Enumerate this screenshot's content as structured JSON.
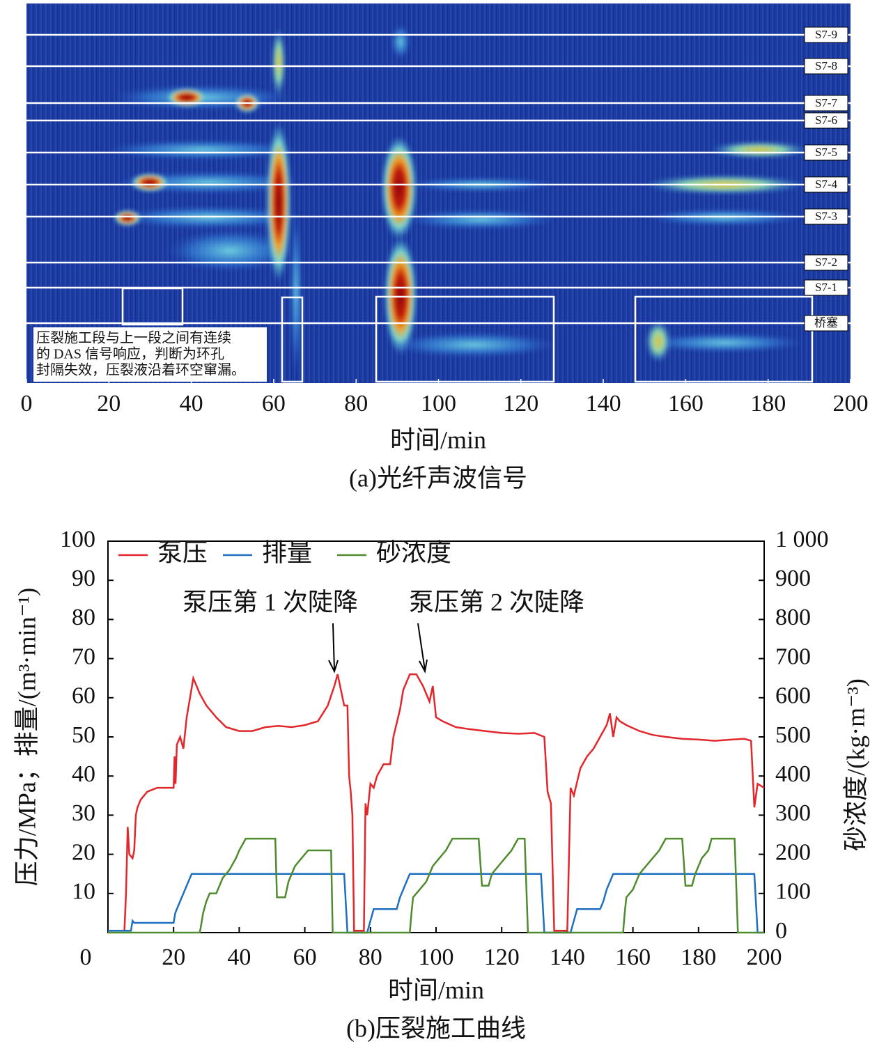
{
  "chart_data": [
    {
      "type": "heatmap",
      "x_label": "时间/min",
      "caption": "(a)光纤声波信号",
      "xlim": [
        0,
        200
      ],
      "xticks": [
        0,
        20,
        40,
        60,
        80,
        100,
        120,
        140,
        160,
        180,
        200
      ],
      "stages": [
        "S7-9",
        "S7-8",
        "S7-7",
        "S7-6",
        "S7-5",
        "S7-4",
        "S7-3",
        "S7-2",
        "S7-1",
        "桥塞"
      ],
      "annotation": [
        "压裂施工段与上一段之间有连续",
        "的 DAS 信号响应，判断为环孔",
        "封隔失效，压裂液沿着环空窜漏。"
      ]
    },
    {
      "type": "line",
      "x_label": "时间/min",
      "y_label": "压力/MPa；排量/(m³·min⁻¹)",
      "y2_label": "砂浓度/(kg·m⁻³)",
      "caption": "(b)压裂施工曲线",
      "xlim": [
        0,
        200
      ],
      "xticks": [
        0,
        20,
        40,
        60,
        80,
        100,
        120,
        140,
        160,
        180,
        200
      ],
      "ylim": [
        0,
        100
      ],
      "yticks": [
        10,
        20,
        30,
        40,
        50,
        60,
        70,
        80,
        90,
        100
      ],
      "y2lim": [
        0,
        1000
      ],
      "y2ticks": [
        0,
        100,
        200,
        300,
        400,
        500,
        600,
        700,
        800,
        900,
        {
          "value": 1000,
          "label": "1 000"
        }
      ],
      "annotations": [
        "泵压第 1 次陡降",
        "泵压第 2 次陡降"
      ],
      "series": [
        {
          "name": "泵压",
          "color": "#e3262b",
          "x": [
            0,
            5,
            5.5,
            6,
            6.5,
            7.5,
            8,
            8.5,
            9,
            10,
            12,
            15,
            20,
            20.3,
            20.6,
            21,
            22,
            23,
            24,
            25,
            26,
            28,
            30,
            33,
            36,
            40,
            44,
            48,
            52,
            56,
            60,
            64,
            67,
            69,
            70,
            71,
            72,
            73,
            73.5,
            74,
            74.5,
            75,
            78,
            78.5,
            79,
            80,
            81,
            82,
            84,
            86,
            87,
            89,
            90,
            92,
            94,
            96,
            98,
            99,
            100,
            102,
            106,
            110,
            115,
            120,
            125,
            130,
            133,
            134,
            135,
            136,
            140,
            141,
            142,
            144,
            146,
            148,
            150,
            152,
            153,
            154,
            155,
            156,
            158,
            162,
            166,
            170,
            175,
            180,
            185,
            190,
            194,
            196,
            197,
            198,
            200
          ],
          "values": [
            0.5,
            0.5,
            10,
            27,
            20,
            19,
            21,
            30,
            32,
            34,
            36,
            37,
            37,
            45,
            38,
            48,
            50,
            47,
            55,
            60,
            65,
            61,
            58,
            55,
            52.5,
            51.5,
            51.5,
            52.5,
            52.8,
            52.5,
            53,
            54,
            58,
            63,
            66,
            62,
            58,
            58,
            40,
            36,
            30,
            0.5,
            0.5,
            33,
            30,
            38,
            37,
            40,
            43,
            43,
            50,
            57,
            62,
            66,
            66,
            63,
            59,
            63,
            55,
            54,
            52.5,
            52,
            51.5,
            51,
            50.8,
            51,
            50,
            36,
            33,
            0.5,
            0.5,
            37,
            35,
            42,
            45,
            47,
            50,
            53,
            56,
            50,
            55,
            54,
            53,
            51.5,
            50.5,
            50,
            49.5,
            49.3,
            49,
            49.3,
            49.5,
            49,
            32,
            38,
            37
          ]
        },
        {
          "name": "排量",
          "color": "#1f6fc0",
          "x": [
            0,
            7,
            7.5,
            8,
            20,
            20.5,
            22,
            24,
            25,
            25.5,
            72,
            73,
            79,
            80,
            81,
            88,
            89,
            91,
            92,
            132,
            133,
            141,
            142,
            143,
            150,
            151,
            152,
            154,
            197,
            198,
            200
          ],
          "values": [
            0.5,
            0.5,
            3,
            2.5,
            2.5,
            5,
            8,
            12,
            14,
            15,
            15,
            0,
            0,
            3,
            6,
            6,
            9,
            13,
            15,
            15,
            0,
            0,
            3,
            6,
            6,
            8,
            11,
            15,
            15,
            0,
            0
          ]
        },
        {
          "name": "砂浓度",
          "color": "#4e8a2e",
          "axis": "y2",
          "x": [
            0,
            28,
            29,
            30,
            31,
            33,
            34,
            35,
            37,
            39,
            40,
            42,
            51,
            51.5,
            54,
            55,
            57,
            59,
            61,
            68,
            68.5,
            92,
            92.5,
            93,
            95,
            97,
            99,
            101,
            103,
            105,
            113,
            114,
            116,
            117,
            119,
            121,
            123,
            125,
            127,
            128,
            157,
            157.5,
            158,
            160,
            162,
            164,
            166,
            168,
            170,
            175,
            176,
            178,
            179,
            181,
            183,
            184,
            191,
            192,
            200
          ],
          "values": [
            0,
            0,
            50,
            80,
            100,
            100,
            120,
            140,
            160,
            190,
            210,
            240,
            240,
            90,
            90,
            130,
            170,
            190,
            210,
            210,
            0,
            0,
            50,
            90,
            110,
            130,
            170,
            190,
            210,
            240,
            240,
            120,
            120,
            150,
            170,
            190,
            210,
            240,
            240,
            0,
            0,
            50,
            90,
            110,
            150,
            170,
            190,
            210,
            240,
            240,
            120,
            120,
            150,
            190,
            210,
            240,
            240,
            0,
            0
          ]
        }
      ]
    }
  ]
}
